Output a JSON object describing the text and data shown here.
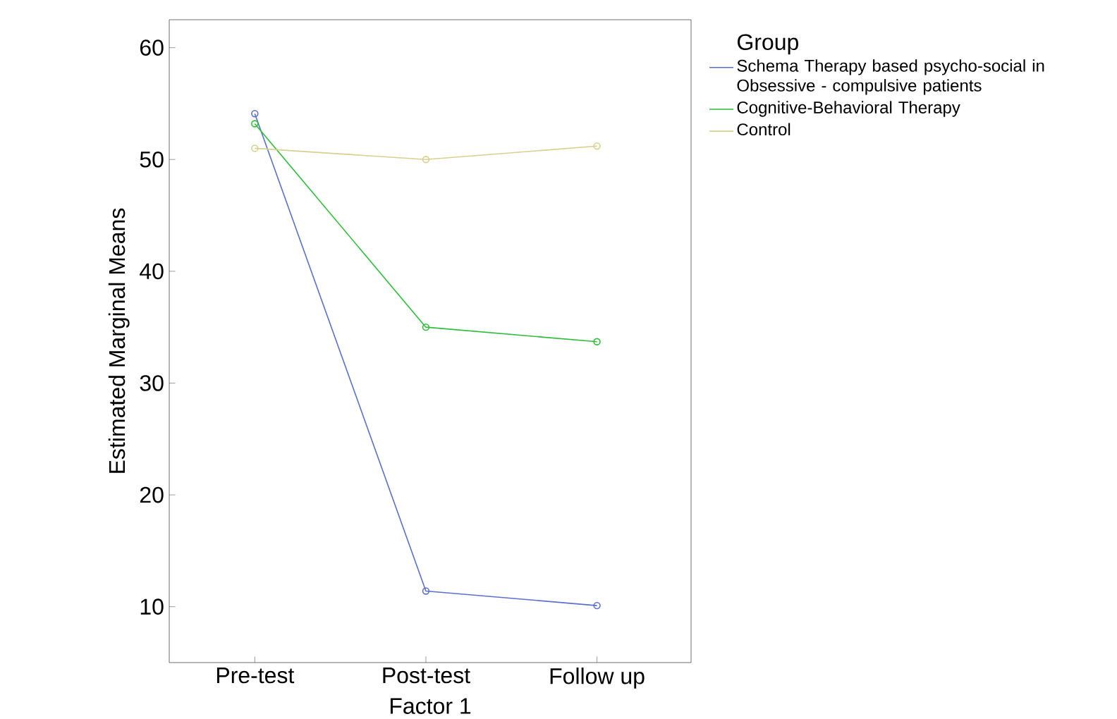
{
  "chart_data": {
    "type": "line",
    "xlabel": "Factor 1",
    "ylabel": "Estimated Marginal Means",
    "legend_title": "Group",
    "categories": [
      "Pre-test",
      "Post-test",
      "Follow up"
    ],
    "series": [
      {
        "name": "Schema Therapy based psycho-social in Obsessive - compulsive patients",
        "color": "#5b6fcc",
        "values": [
          54.1,
          11.4,
          10.1
        ]
      },
      {
        "name": "Cognitive-Behavioral Therapy",
        "color": "#2ebd3a",
        "values": [
          53.2,
          35.0,
          33.7
        ]
      },
      {
        "name": "Control",
        "color": "#d8cf90",
        "values": [
          51.0,
          50.0,
          51.2
        ]
      }
    ],
    "ylim": [
      5,
      62.5
    ],
    "yticks": [
      10,
      20,
      30,
      40,
      50,
      60
    ],
    "grid": false,
    "legend": "top right",
    "marker": "circle",
    "line_style": "solid"
  }
}
